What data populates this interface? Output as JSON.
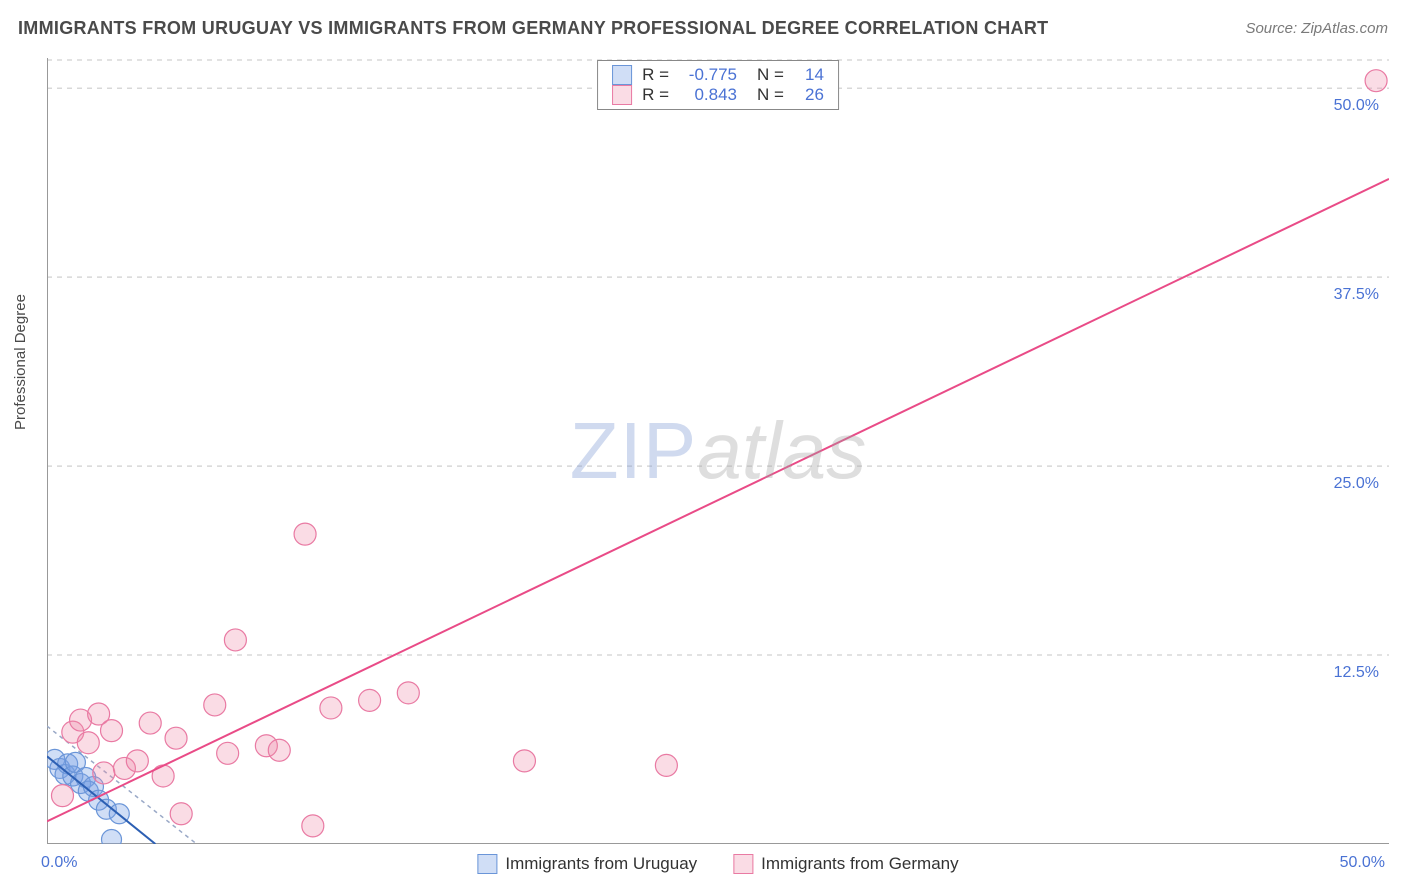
{
  "header": {
    "title": "IMMIGRANTS FROM URUGUAY VS IMMIGRANTS FROM GERMANY PROFESSIONAL DEGREE CORRELATION CHART",
    "source": "Source: ZipAtlas.com"
  },
  "chart": {
    "type": "scatter",
    "y_axis_label": "Professional Degree",
    "background_color": "#ffffff",
    "grid_color": "#d8d8d8",
    "axis_color": "#999999",
    "xlim": [
      0,
      52
    ],
    "ylim": [
      0,
      52
    ],
    "y_ticks": [
      {
        "v": 12.5,
        "label": "12.5%"
      },
      {
        "v": 25.0,
        "label": "25.0%"
      },
      {
        "v": 37.5,
        "label": "37.5%"
      },
      {
        "v": 50.0,
        "label": "50.0%"
      }
    ],
    "x_ticks": [
      {
        "v": 0,
        "label": "0.0%"
      },
      {
        "v": 12.5,
        "label": ""
      },
      {
        "v": 25.0,
        "label": ""
      },
      {
        "v": 37.5,
        "label": ""
      },
      {
        "v": 50.0,
        "label": "50.0%"
      }
    ],
    "watermark": {
      "part1": "ZIP",
      "part2": "atlas"
    },
    "series": [
      {
        "name": "Immigrants from Uruguay",
        "color_fill": "rgba(120,160,230,0.35)",
        "color_stroke": "#6a95d8",
        "marker_radius": 10,
        "R": "-0.775",
        "N": "14",
        "trend": {
          "x1": 0,
          "y1": 5.8,
          "x2": 4.2,
          "y2": 0,
          "color": "#2c5fb3",
          "width": 2
        },
        "trend_dash": {
          "x1": 0,
          "y1": 7.8,
          "x2": 5.8,
          "y2": 0,
          "color": "#9aa9c7"
        },
        "points": [
          {
            "x": 0.3,
            "y": 5.6
          },
          {
            "x": 0.5,
            "y": 5.0
          },
          {
            "x": 0.7,
            "y": 4.6
          },
          {
            "x": 0.8,
            "y": 5.3
          },
          {
            "x": 1.0,
            "y": 4.5
          },
          {
            "x": 1.1,
            "y": 5.4
          },
          {
            "x": 1.3,
            "y": 4.0
          },
          {
            "x": 1.5,
            "y": 4.4
          },
          {
            "x": 1.6,
            "y": 3.5
          },
          {
            "x": 1.8,
            "y": 3.8
          },
          {
            "x": 2.0,
            "y": 2.9
          },
          {
            "x": 2.3,
            "y": 2.3
          },
          {
            "x": 2.5,
            "y": 0.3
          },
          {
            "x": 2.8,
            "y": 2.0
          }
        ]
      },
      {
        "name": "Immigrants from Germany",
        "color_fill": "rgba(240,140,170,0.30)",
        "color_stroke": "#e97aa3",
        "marker_radius": 11,
        "R": "0.843",
        "N": "26",
        "trend": {
          "x1": 0,
          "y1": 1.5,
          "x2": 52,
          "y2": 44,
          "color": "#e94b87",
          "width": 2
        },
        "points": [
          {
            "x": 0.6,
            "y": 3.2
          },
          {
            "x": 1.0,
            "y": 7.4
          },
          {
            "x": 1.3,
            "y": 8.2
          },
          {
            "x": 1.6,
            "y": 6.7
          },
          {
            "x": 2.0,
            "y": 8.6
          },
          {
            "x": 2.2,
            "y": 4.7
          },
          {
            "x": 2.5,
            "y": 7.5
          },
          {
            "x": 3.0,
            "y": 5.0
          },
          {
            "x": 3.5,
            "y": 5.5
          },
          {
            "x": 4.0,
            "y": 8.0
          },
          {
            "x": 4.5,
            "y": 4.5
          },
          {
            "x": 5.0,
            "y": 7.0
          },
          {
            "x": 5.2,
            "y": 2.0
          },
          {
            "x": 6.5,
            "y": 9.2
          },
          {
            "x": 7.0,
            "y": 6.0
          },
          {
            "x": 7.3,
            "y": 13.5
          },
          {
            "x": 8.5,
            "y": 6.5
          },
          {
            "x": 9.0,
            "y": 6.2
          },
          {
            "x": 10.0,
            "y": 20.5
          },
          {
            "x": 10.3,
            "y": 1.2
          },
          {
            "x": 11.0,
            "y": 9.0
          },
          {
            "x": 12.5,
            "y": 9.5
          },
          {
            "x": 14.0,
            "y": 10.0
          },
          {
            "x": 18.5,
            "y": 5.5
          },
          {
            "x": 24.0,
            "y": 5.2
          },
          {
            "x": 51.5,
            "y": 50.5
          }
        ]
      }
    ],
    "legend_bottom": [
      {
        "label": "Immigrants from Uruguay",
        "fill": "rgba(120,160,230,0.35)",
        "stroke": "#6a95d8"
      },
      {
        "label": "Immigrants from Germany",
        "fill": "rgba(240,140,170,0.30)",
        "stroke": "#e97aa3"
      }
    ]
  }
}
